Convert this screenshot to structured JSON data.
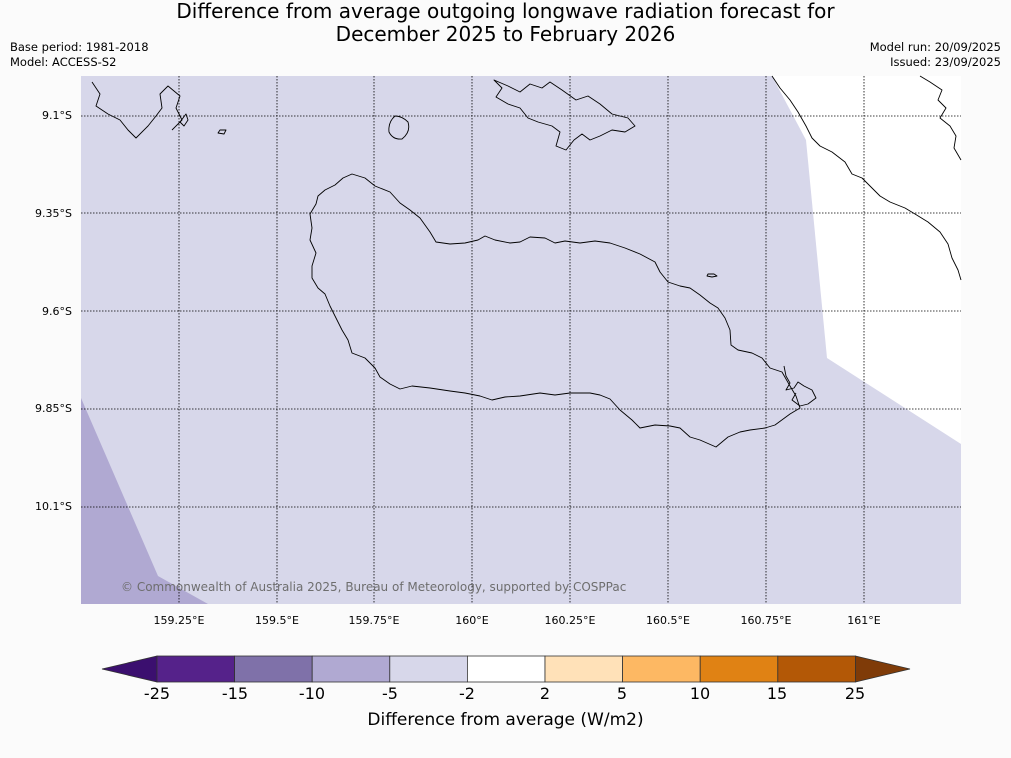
{
  "header": {
    "title_line1": "Difference from average outgoing longwave radiation forecast for",
    "title_line2": "December 2025 to February 2026",
    "base_period": "Base period: 1981-2018",
    "model": "Model: ACCESS-S2",
    "model_run": "Model run: 20/09/2025",
    "issued": "Issued: 23/09/2025"
  },
  "map": {
    "lat_labels": [
      "9.1°S",
      "9.35°S",
      "9.6°S",
      "9.85°S",
      "10.1°S"
    ],
    "lon_labels": [
      "159.25°E",
      "159.5°E",
      "159.75°E",
      "160°E",
      "160.25°E",
      "160.5°E",
      "160.75°E",
      "161°E"
    ],
    "copyright": "© Commonwealth of Australia 2025, Bureau of Meteorology, supported by COSPPac"
  },
  "colorbar": {
    "label": "Difference from average (W/m2)",
    "ticks": [
      "-25",
      "-15",
      "-10",
      "-5",
      "-2",
      "2",
      "5",
      "10",
      "15",
      "25"
    ],
    "colors": [
      "#3b0f6f",
      "#55228a",
      "#7f71a9",
      "#b0a9d2",
      "#d7d7ea",
      "#ffffff",
      "#ffe1b8",
      "#fdb863",
      "#e08214",
      "#b35806",
      "#7f3b08"
    ]
  }
}
